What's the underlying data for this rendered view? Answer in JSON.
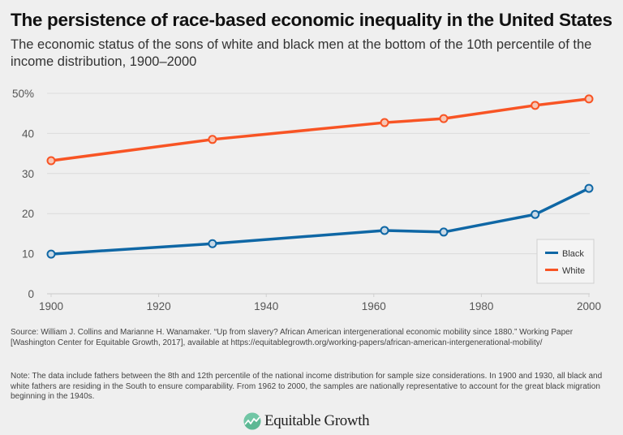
{
  "header": {
    "title": "The persistence of race-based economic inequality in the United States",
    "subtitle": "The economic status of the sons of white and black men at the bottom of the 10th percentile of the income distribution, 1900–2000"
  },
  "footer": {
    "source": "Source: William J. Collins and Marianne H. Wanamaker. “Up from slavery? African American intergenerational economic mobility since 1880.” Working Paper [Washington Center for Equitable Growth, 2017], available at https://equitablegrowth.org/working-papers/african-american-intergenerational-mobility/",
    "note": "Note: The data include fathers between the 8th and 12th percentile of the national income distribution for sample size considerations. In 1900 and 1930, all black and white fathers are residing in the South to ensure comparability. From 1962 to 2000, the samples are nationally representative to account for the great black migration beginning in the 1940s.",
    "logo_text": "Equitable Growth",
    "logo_color": "#5cb894"
  },
  "chart_data": {
    "type": "line",
    "title": "The persistence of race-based economic inequality in the United States",
    "xlabel": "",
    "ylabel": "",
    "xlim": [
      1900,
      2000
    ],
    "ylim": [
      0,
      50
    ],
    "grid": true,
    "legend_position": "bottom-right",
    "x_ticks": [
      1900,
      1920,
      1940,
      1960,
      1980,
      2000
    ],
    "x_tick_labels": [
      "1900",
      "1920",
      "1940",
      "1960",
      "1980",
      "2000"
    ],
    "y_ticks": [
      0,
      10,
      20,
      30,
      40,
      50
    ],
    "y_tick_labels": [
      "0",
      "10",
      "20",
      "30",
      "40",
      "50%"
    ],
    "x": [
      1900,
      1930,
      1962,
      1973,
      1990,
      2000
    ],
    "series": [
      {
        "name": "Black",
        "color": "#0f67a5",
        "values": [
          9.9,
          12.5,
          15.8,
          15.4,
          19.8,
          26.3
        ]
      },
      {
        "name": "White",
        "color": "#f85424",
        "values": [
          33.2,
          38.5,
          42.7,
          43.7,
          47.0,
          48.6
        ]
      }
    ]
  }
}
